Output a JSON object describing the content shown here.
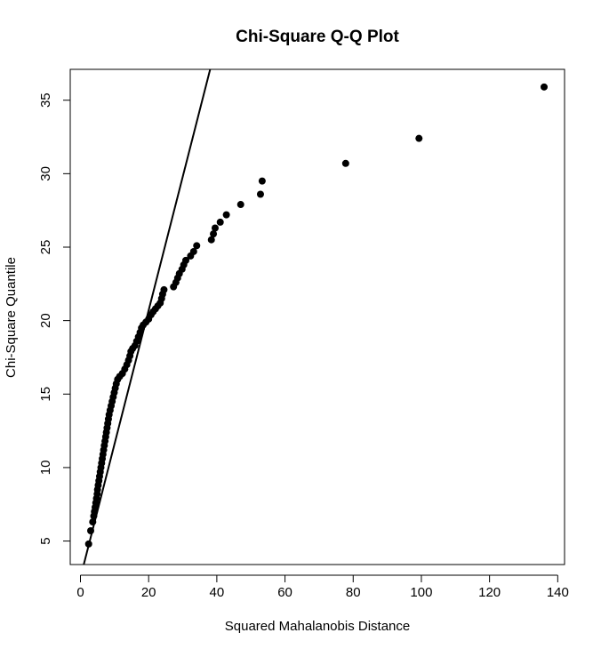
{
  "chart_data": {
    "type": "scatter",
    "title": "Chi-Square Q-Q Plot",
    "xlabel": "Squared Mahalanobis Distance",
    "ylabel": "Chi-Square Quantile",
    "xlim": [
      -3,
      142
    ],
    "ylim": [
      3.4,
      37.1
    ],
    "x_ticks": [
      0,
      20,
      40,
      60,
      80,
      100,
      120,
      140
    ],
    "x_tick_labels": [
      "0",
      "20",
      "40",
      "60",
      "80",
      "100",
      "120",
      "140"
    ],
    "y_ticks": [
      5,
      10,
      15,
      20,
      25,
      30,
      35
    ],
    "y_tick_labels": [
      "5",
      "10",
      "15",
      "20",
      "25",
      "30",
      "35"
    ],
    "grid": false,
    "legend": "none",
    "point_color": "#000000",
    "reference_line": {
      "intercept": 2.52,
      "slope": 0.909
    },
    "points": [
      [
        2.4,
        4.8
      ],
      [
        3.0,
        5.7
      ],
      [
        3.6,
        6.3
      ],
      [
        3.9,
        6.7
      ],
      [
        4.1,
        7.0
      ],
      [
        4.3,
        7.3
      ],
      [
        4.5,
        7.6
      ],
      [
        4.7,
        7.9
      ],
      [
        4.9,
        8.2
      ],
      [
        5.0,
        8.5
      ],
      [
        5.2,
        8.8
      ],
      [
        5.4,
        9.1
      ],
      [
        5.6,
        9.4
      ],
      [
        5.8,
        9.7
      ],
      [
        6.0,
        10.0
      ],
      [
        6.2,
        10.3
      ],
      [
        6.4,
        10.6
      ],
      [
        6.6,
        10.9
      ],
      [
        6.8,
        11.2
      ],
      [
        7.0,
        11.5
      ],
      [
        7.2,
        11.8
      ],
      [
        7.4,
        12.1
      ],
      [
        7.6,
        12.4
      ],
      [
        7.8,
        12.7
      ],
      [
        8.0,
        13.0
      ],
      [
        8.2,
        13.3
      ],
      [
        8.4,
        13.6
      ],
      [
        8.7,
        13.9
      ],
      [
        9.0,
        14.2
      ],
      [
        9.3,
        14.5
      ],
      [
        9.6,
        14.8
      ],
      [
        9.9,
        15.1
      ],
      [
        10.2,
        15.4
      ],
      [
        10.5,
        15.7
      ],
      [
        10.9,
        16.0
      ],
      [
        11.5,
        16.2
      ],
      [
        12.3,
        16.4
      ],
      [
        13.0,
        16.7
      ],
      [
        13.6,
        17.0
      ],
      [
        14.1,
        17.3
      ],
      [
        14.5,
        17.6
      ],
      [
        14.8,
        17.9
      ],
      [
        15.3,
        18.1
      ],
      [
        16.0,
        18.3
      ],
      [
        16.5,
        18.6
      ],
      [
        17.0,
        18.9
      ],
      [
        17.5,
        19.2
      ],
      [
        17.9,
        19.5
      ],
      [
        18.4,
        19.7
      ],
      [
        19.2,
        19.9
      ],
      [
        20.0,
        20.1
      ],
      [
        20.7,
        20.4
      ],
      [
        21.3,
        20.6
      ],
      [
        22.0,
        20.8
      ],
      [
        22.7,
        21.0
      ],
      [
        23.4,
        21.2
      ],
      [
        23.8,
        21.5
      ],
      [
        24.1,
        21.8
      ],
      [
        24.5,
        22.1
      ],
      [
        27.3,
        22.3
      ],
      [
        28.0,
        22.6
      ],
      [
        28.5,
        22.9
      ],
      [
        29.0,
        23.2
      ],
      [
        29.8,
        23.5
      ],
      [
        30.3,
        23.8
      ],
      [
        30.9,
        24.1
      ],
      [
        32.3,
        24.4
      ],
      [
        33.2,
        24.7
      ],
      [
        34.1,
        25.1
      ],
      [
        38.4,
        25.5
      ],
      [
        39.0,
        25.9
      ],
      [
        39.5,
        26.3
      ],
      [
        41.0,
        26.7
      ],
      [
        42.8,
        27.2
      ],
      [
        47.0,
        27.9
      ],
      [
        52.8,
        28.6
      ],
      [
        53.3,
        29.5
      ],
      [
        77.8,
        30.7
      ],
      [
        99.3,
        32.4
      ],
      [
        136.0,
        35.9
      ]
    ]
  }
}
